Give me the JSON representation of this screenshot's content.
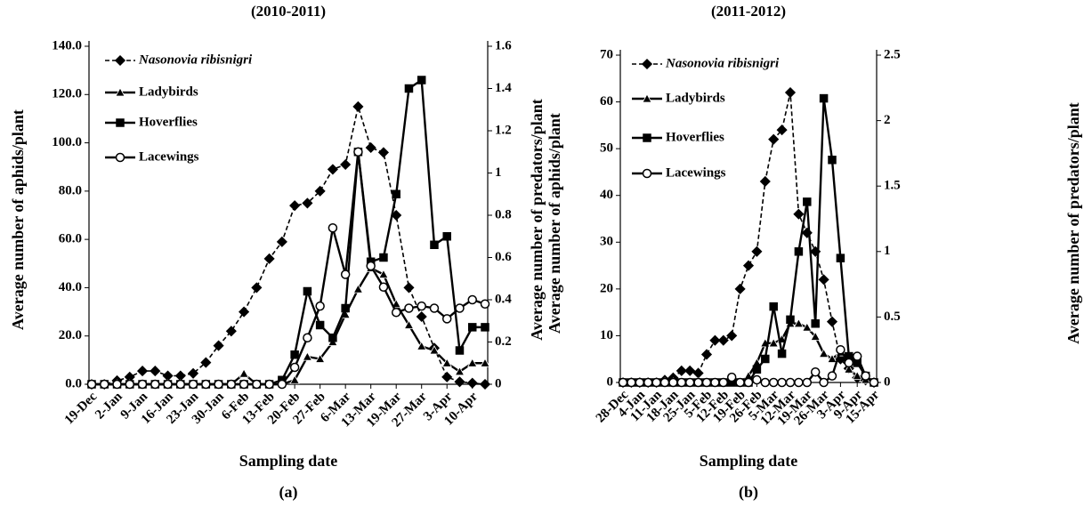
{
  "chart_data": [
    {
      "type": "line",
      "title": "(2010-2011)",
      "caption": "(a)",
      "x_label": "Sampling date",
      "y_label": "Average number of aphids/plant",
      "y2_label": "Average number of predators/plant",
      "categories": [
        "19-Dec",
        null,
        "2-Jan",
        null,
        "9-Jan",
        null,
        "16-Jan",
        null,
        "23-Jan",
        null,
        "30-Jan",
        null,
        "6-Feb",
        null,
        "13-Feb",
        null,
        "20-Feb",
        null,
        "27-Feb",
        null,
        "6-Mar",
        null,
        "13-Mar",
        null,
        "19-Mar",
        null,
        "27-Mar",
        null,
        "3-Apr",
        null,
        "10-Apr",
        null
      ],
      "ylim": [
        0,
        140
      ],
      "yticks": [
        {
          "value": 0,
          "label": "0.0"
        },
        {
          "value": 20,
          "label": "20.0"
        },
        {
          "value": 40,
          "label": "40.0"
        },
        {
          "value": 60,
          "label": "60.0"
        },
        {
          "value": 80,
          "label": "80.0"
        },
        {
          "value": 100,
          "label": "100.0"
        },
        {
          "value": 120,
          "label": "120.0"
        },
        {
          "value": 140,
          "label": "140.0"
        }
      ],
      "y2lim": [
        0,
        1.6
      ],
      "y2ticks": [
        0,
        0.2,
        0.4,
        0.6,
        0.8,
        1,
        1.2,
        1.4,
        1.6
      ],
      "series": [
        {
          "name": "Nasonovia ribisnigri",
          "color": "#000000",
          "marker": "diamond",
          "dashed": true,
          "values": [
            0,
            0,
            1.5,
            3,
            5.5,
            5.5,
            3.5,
            3.5,
            4.5,
            9,
            16,
            22,
            30,
            40,
            52,
            59,
            74,
            75,
            80,
            89,
            91,
            115,
            98,
            96,
            70,
            40,
            28,
            15,
            3,
            1,
            0.5,
            0
          ]
        },
        {
          "name": "Ladybirds",
          "color": "#000000",
          "marker": "triangle",
          "axis": "y2",
          "values": [
            0,
            0,
            0,
            0,
            0,
            0,
            0,
            0,
            0,
            0,
            0,
            0,
            0.05,
            0,
            0,
            0,
            0.02,
            0.13,
            0.12,
            0.2,
            0.33,
            0.45,
            0.55,
            0.52,
            0.38,
            0.28,
            0.18,
            0.16,
            0.1,
            0.06,
            0.1,
            0.1
          ]
        },
        {
          "name": "Hoverflies",
          "color": "#000000",
          "marker": "square",
          "axis": "y2",
          "values": [
            0,
            0,
            0,
            0,
            0,
            0,
            0,
            0,
            0,
            0,
            0,
            0,
            0,
            0,
            0,
            0.02,
            0.14,
            0.44,
            0.28,
            0.22,
            0.36,
            1.1,
            0.58,
            0.6,
            0.9,
            1.4,
            1.44,
            0.66,
            0.7,
            0.16,
            0.27,
            0.27
          ]
        },
        {
          "name": "Lacewings",
          "color": "#000000",
          "marker": "circle",
          "axis": "y2",
          "values": [
            0,
            0,
            0,
            0,
            0,
            0,
            0,
            0,
            0,
            0,
            0,
            0,
            0,
            0,
            0,
            0,
            0.08,
            0.22,
            0.37,
            0.74,
            0.52,
            1.1,
            0.56,
            0.46,
            0.34,
            0.36,
            0.37,
            0.36,
            0.31,
            0.36,
            0.4,
            0.38
          ]
        }
      ]
    },
    {
      "type": "line",
      "title": "(2011-2012)",
      "caption": "(b)",
      "x_label": "Sampling date",
      "y_label": "Average number of aphids/plant",
      "y2_label": "Average number of predators/plant",
      "categories": [
        "28-Dec",
        null,
        "4-Jan",
        null,
        "11-Jan",
        null,
        "18-Jan",
        null,
        "25-Jan",
        null,
        "5-Feb",
        null,
        "12-Feb",
        null,
        "19-Feb",
        null,
        "26-Feb",
        null,
        "5-Mar",
        null,
        "12-Mar",
        null,
        "19-Mar",
        null,
        "26-Mar",
        null,
        "3-Apr",
        null,
        "9-Apr",
        null,
        "15-Apr"
      ],
      "ylim": [
        0,
        70
      ],
      "yticks": [
        0,
        10,
        20,
        30,
        40,
        50,
        60,
        70
      ],
      "y2lim": [
        0,
        2.5
      ],
      "y2ticks": [
        0,
        0.5,
        1,
        1.5,
        2,
        2.5
      ],
      "series": [
        {
          "name": "Nasonovia ribisnigri",
          "color": "#000000",
          "marker": "diamond",
          "dashed": true,
          "values": [
            0,
            0,
            0,
            0,
            0,
            0.5,
            1,
            2.5,
            2.5,
            2,
            6,
            9,
            9,
            10,
            20,
            25,
            28,
            43,
            52,
            54,
            62,
            36,
            32,
            28,
            22,
            13,
            5,
            3,
            1,
            0.5,
            0
          ]
        },
        {
          "name": "Ladybirds",
          "color": "#000000",
          "marker": "triangle",
          "axis": "y2",
          "values": [
            0,
            0,
            0,
            0,
            0,
            0,
            0,
            0,
            0,
            0,
            0,
            0,
            0,
            0,
            0,
            0.05,
            0.15,
            0.3,
            0.3,
            0.33,
            0.45,
            0.45,
            0.42,
            0.35,
            0.22,
            0.18,
            0.23,
            0.1,
            0.05,
            0.02,
            0
          ]
        },
        {
          "name": "Hoverflies",
          "color": "#000000",
          "marker": "square",
          "axis": "y2",
          "values": [
            0,
            0,
            0,
            0,
            0,
            0,
            0,
            0,
            0,
            0,
            0,
            0,
            0,
            0,
            0,
            0,
            0.1,
            0.18,
            0.58,
            0.22,
            0.48,
            1,
            1.38,
            0.45,
            2.17,
            1.7,
            0.95,
            0.2,
            0.15,
            0.05,
            0
          ]
        },
        {
          "name": "Lacewings",
          "color": "#000000",
          "marker": "circle",
          "axis": "y2",
          "values": [
            0,
            0,
            0,
            0,
            0,
            0,
            0,
            0,
            0,
            0,
            0,
            0,
            0,
            0.04,
            0,
            0,
            0.02,
            0,
            0,
            0,
            0,
            0,
            0,
            0.08,
            0,
            0.05,
            0.25,
            0.15,
            0.2,
            0.05,
            0
          ]
        }
      ]
    }
  ]
}
